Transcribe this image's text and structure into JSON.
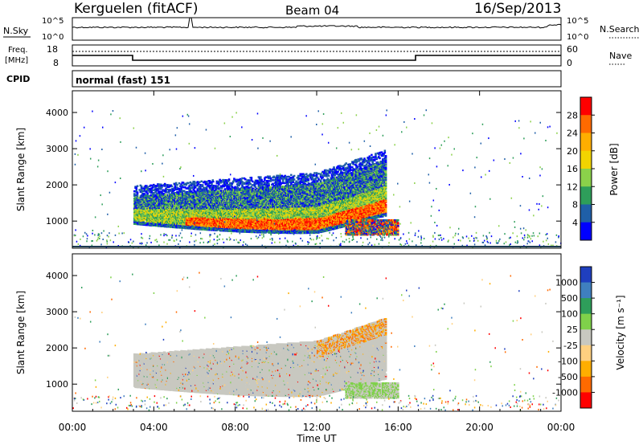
{
  "header": {
    "station": "Kerguelen (fitACF)",
    "beam": "Beam 04",
    "date": "16/Sep/2013"
  },
  "status_panels": {
    "nsky_label": "N.Sky",
    "nsky_ticks": [
      "10^5",
      "10^0"
    ],
    "nsearch_label": "N.Search",
    "nsearch_ticks": [
      "10^5",
      "10^0"
    ],
    "freq_label": "Freq.",
    "freq_unit": "[MHz]",
    "freq_ticks": [
      "18",
      "8"
    ],
    "nave_label": "Nave",
    "nave_ticks": [
      "60",
      "0"
    ],
    "cpid_label": "CPID",
    "cpid_value": "normal (fast) 151"
  },
  "chart_data": [
    {
      "type": "heatmap",
      "name": "power-panel",
      "ylabel": "Slant Range [km]",
      "ylim": [
        250,
        4600
      ],
      "yticks": [
        "4000",
        "3000",
        "2000",
        "1000"
      ],
      "colorbar_label": "Power [dB]",
      "colorbar_ticks": [
        "28",
        "24",
        "20",
        "16",
        "12",
        "8",
        "4"
      ],
      "colorbar_colors": [
        "#ff0000",
        "#ff6a00",
        "#ffae00",
        "#f2d400",
        "#8bd14a",
        "#2e9e5a",
        "#1f5fa8",
        "#0000ff"
      ],
      "regions": [
        {
          "x0": 3.0,
          "x1": 15.6,
          "y0": 900,
          "y1": 1700,
          "level": "high"
        },
        {
          "x0": 3.0,
          "x1": 15.0,
          "y0": 1200,
          "y1": 2300,
          "level": "mid"
        },
        {
          "x0": 13.4,
          "x1": 16.0,
          "y0": 650,
          "y1": 1050,
          "level": "high"
        }
      ]
    },
    {
      "type": "heatmap",
      "name": "velocity-panel",
      "ylabel": "Slant Range [km]",
      "ylim": [
        250,
        4600
      ],
      "yticks": [
        "4000",
        "3000",
        "2000",
        "1000"
      ],
      "xlabel": "Time UT",
      "xticks": [
        "00:00",
        "04:00",
        "08:00",
        "12:00",
        "16:00",
        "20:00",
        "00:00"
      ],
      "xlim": [
        0,
        24
      ],
      "colorbar_label": "Velocity [m s⁻¹]",
      "colorbar_ticks": [
        "1000",
        "500",
        "100",
        "25",
        "-25",
        "-100",
        "-500",
        "-1000"
      ],
      "colorbar_colors": [
        "#1f3fbf",
        "#3f7fbf",
        "#2e9e5a",
        "#7fd14a",
        "#c8c8c0",
        "#ffd080",
        "#ffae00",
        "#ff6a00",
        "#ff0000"
      ]
    }
  ]
}
